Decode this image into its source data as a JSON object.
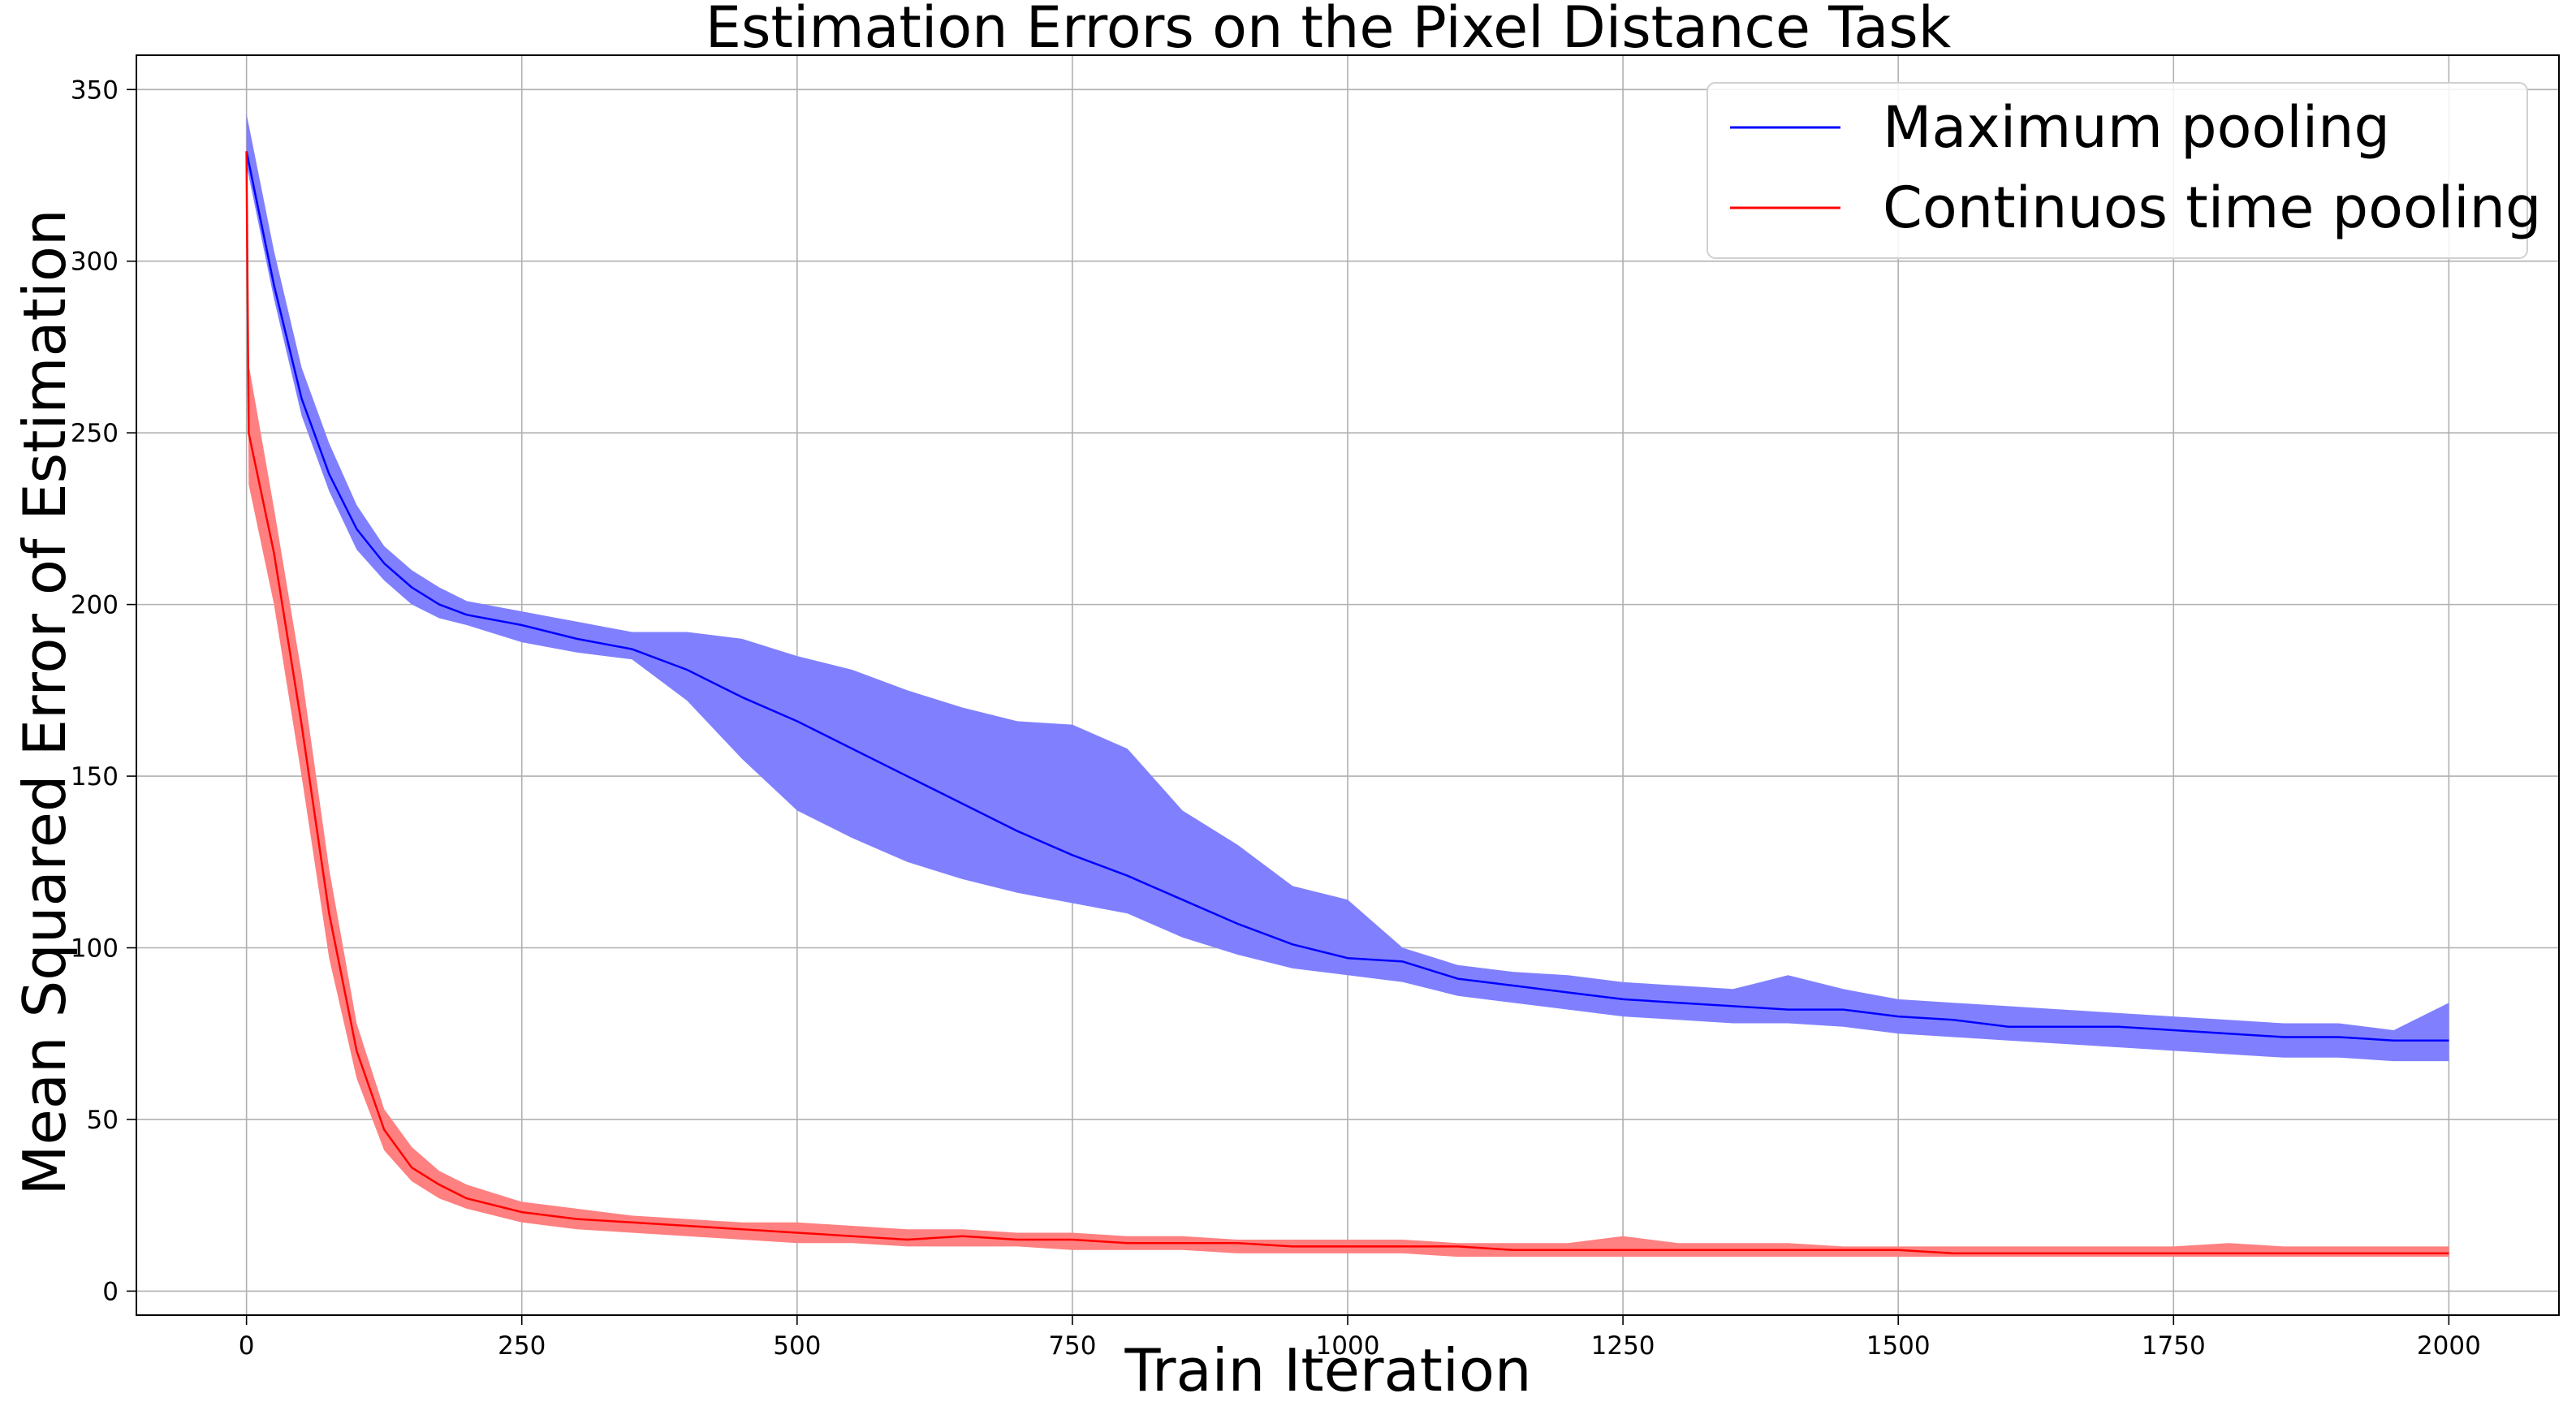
{
  "chart_data": {
    "type": "line",
    "title": "Estimation Errors on the Pixel Distance Task",
    "xlabel": "Train Iteration",
    "ylabel": "Mean Squared Error of Estimation",
    "xlim": [
      -100,
      2100
    ],
    "ylim": [
      -7,
      360
    ],
    "xticks": [
      0,
      250,
      500,
      750,
      1000,
      1250,
      1500,
      1750,
      2000
    ],
    "yticks": [
      0,
      50,
      100,
      150,
      200,
      250,
      300,
      350
    ],
    "grid": true,
    "legend_position": "top-right",
    "series": [
      {
        "name": "Maximum pooling",
        "color": "#0000ff",
        "band_color": "#8080ff",
        "x": [
          0,
          25,
          50,
          75,
          100,
          125,
          150,
          175,
          200,
          250,
          300,
          350,
          400,
          450,
          500,
          550,
          600,
          650,
          700,
          750,
          800,
          850,
          900,
          950,
          1000,
          1050,
          1100,
          1150,
          1200,
          1250,
          1300,
          1350,
          1400,
          1450,
          1500,
          1550,
          1600,
          1650,
          1700,
          1750,
          1800,
          1850,
          1900,
          1950,
          2000
        ],
        "y": [
          332,
          293,
          260,
          238,
          222,
          212,
          205,
          200,
          197,
          194,
          190,
          187,
          181,
          173,
          166,
          158,
          150,
          142,
          134,
          127,
          121,
          114,
          107,
          101,
          97,
          96,
          91,
          89,
          87,
          85,
          84,
          83,
          82,
          82,
          80,
          79,
          77,
          77,
          77,
          76,
          75,
          74,
          74,
          73,
          73
        ],
        "lower": [
          328,
          289,
          255,
          233,
          216,
          207,
          200,
          196,
          194,
          189,
          186,
          184,
          172,
          155,
          140,
          132,
          125,
          120,
          116,
          113,
          110,
          103,
          98,
          94,
          92,
          90,
          86,
          84,
          82,
          80,
          79,
          78,
          78,
          77,
          75,
          74,
          73,
          72,
          71,
          70,
          69,
          68,
          68,
          67,
          67
        ],
        "upper": [
          343,
          303,
          269,
          247,
          229,
          217,
          210,
          205,
          201,
          198,
          195,
          192,
          192,
          190,
          185,
          181,
          175,
          170,
          166,
          165,
          158,
          140,
          130,
          118,
          114,
          100,
          95,
          93,
          92,
          90,
          89,
          88,
          92,
          88,
          85,
          84,
          83,
          82,
          81,
          80,
          79,
          78,
          78,
          76,
          84
        ]
      },
      {
        "name": "Continuos time pooling",
        "color": "#ff0000",
        "band_color": "#ff8080",
        "x": [
          0,
          2,
          25,
          50,
          75,
          100,
          125,
          150,
          175,
          200,
          250,
          300,
          350,
          400,
          450,
          500,
          550,
          600,
          650,
          700,
          750,
          800,
          850,
          900,
          950,
          1000,
          1050,
          1100,
          1150,
          1200,
          1250,
          1300,
          1350,
          1400,
          1450,
          1500,
          1550,
          1600,
          1650,
          1700,
          1750,
          1800,
          1850,
          1900,
          1950,
          2000
        ],
        "y": [
          332,
          250,
          215,
          165,
          110,
          70,
          47,
          36,
          31,
          27,
          23,
          21,
          20,
          19,
          18,
          17,
          16,
          15,
          16,
          15,
          15,
          14,
          14,
          14,
          13,
          13,
          13,
          13,
          12,
          12,
          12,
          12,
          12,
          12,
          12,
          12,
          11,
          11,
          11,
          11,
          11,
          11,
          11,
          11,
          11,
          11
        ],
        "lower": [
          328,
          235,
          200,
          150,
          97,
          62,
          41,
          32,
          27,
          24,
          20,
          18,
          17,
          16,
          15,
          14,
          14,
          13,
          13,
          13,
          12,
          12,
          12,
          11,
          11,
          11,
          11,
          10,
          10,
          10,
          10,
          10,
          10,
          10,
          10,
          10,
          10,
          10,
          10,
          10,
          10,
          10,
          10,
          10,
          10,
          10
        ],
        "upper": [
          336,
          270,
          228,
          180,
          123,
          78,
          53,
          42,
          35,
          31,
          26,
          24,
          22,
          21,
          20,
          20,
          19,
          18,
          18,
          17,
          17,
          16,
          16,
          15,
          15,
          15,
          15,
          14,
          14,
          14,
          16,
          14,
          14,
          14,
          13,
          13,
          13,
          13,
          13,
          13,
          13,
          14,
          13,
          13,
          13,
          13
        ]
      }
    ]
  }
}
